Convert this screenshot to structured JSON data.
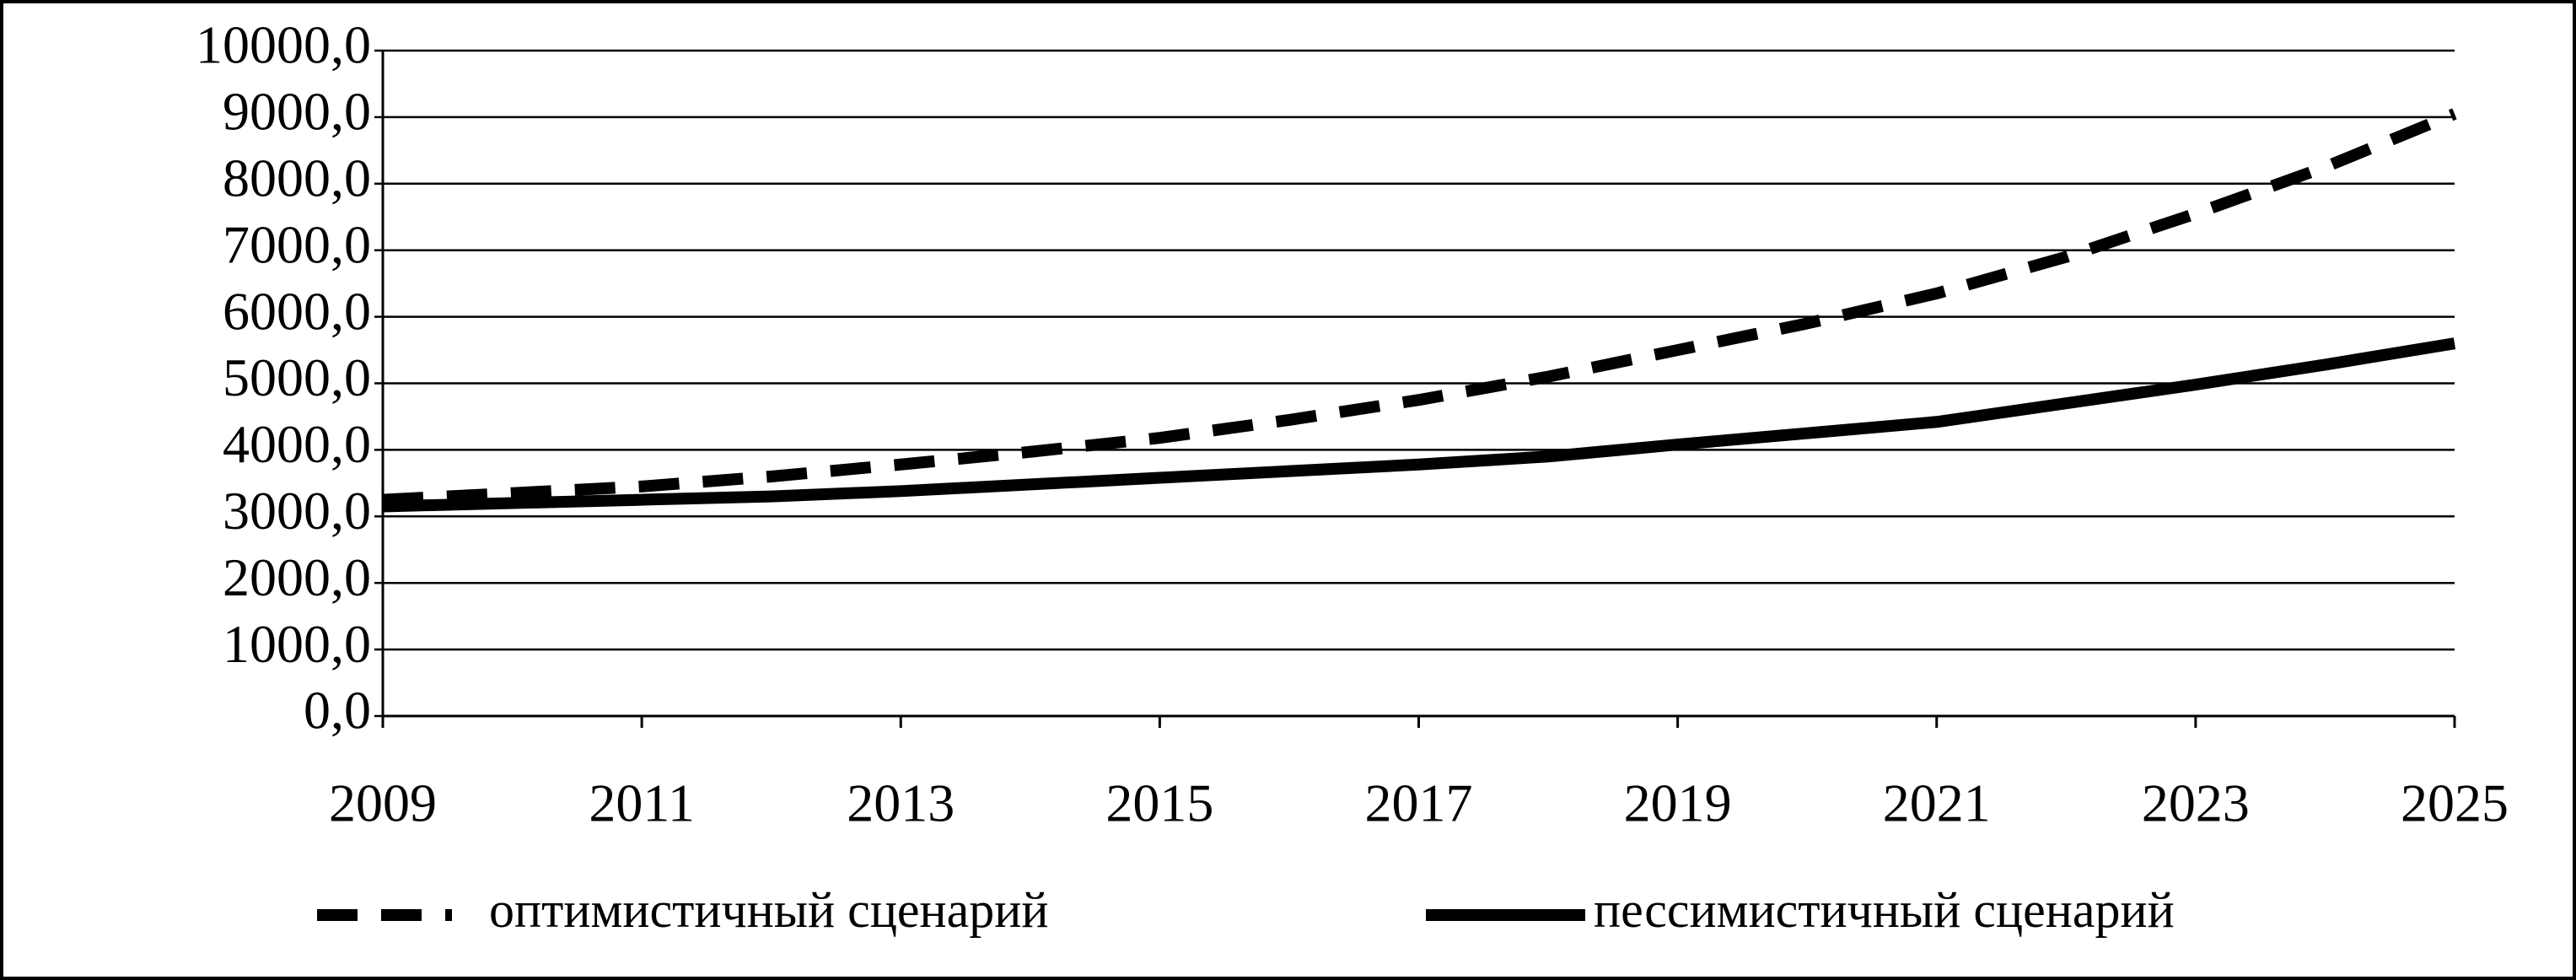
{
  "chart_data": {
    "type": "line",
    "x": [
      2009,
      2010,
      2011,
      2012,
      2013,
      2014,
      2015,
      2016,
      2017,
      2018,
      2019,
      2020,
      2021,
      2022,
      2023,
      2024,
      2025
    ],
    "series": [
      {
        "name": "оптимистичный сценарий",
        "color": "#000000",
        "dash": "dashed",
        "values": [
          3250,
          3350,
          3450,
          3600,
          3780,
          3970,
          4180,
          4450,
          4750,
          5100,
          5500,
          5900,
          6350,
          6900,
          7550,
          8250,
          9050
        ]
      },
      {
        "name": "пессимистичный сценарий",
        "color": "#000000",
        "dash": "solid",
        "values": [
          3150,
          3200,
          3250,
          3300,
          3380,
          3480,
          3580,
          3680,
          3780,
          3900,
          4080,
          4250,
          4420,
          4700,
          4980,
          5280,
          5600
        ]
      }
    ],
    "xlim": [
      2009,
      2025
    ],
    "xticks": [
      2009,
      2011,
      2013,
      2015,
      2017,
      2019,
      2021,
      2023,
      2025
    ],
    "ylim": [
      0,
      10000
    ],
    "yticks": [
      {
        "value": 0,
        "label": "0,0"
      },
      {
        "value": 1000,
        "label": "1000,0"
      },
      {
        "value": 2000,
        "label": "2000,0"
      },
      {
        "value": 3000,
        "label": "3000,0"
      },
      {
        "value": 4000,
        "label": "4000,0"
      },
      {
        "value": 5000,
        "label": "5000,0"
      },
      {
        "value": 6000,
        "label": "6000,0"
      },
      {
        "value": 7000,
        "label": "7000,0"
      },
      {
        "value": 8000,
        "label": "8000,0"
      },
      {
        "value": 9000,
        "label": "9000,0"
      },
      {
        "value": 10000,
        "label": "10000,0"
      }
    ],
    "grid": true,
    "legend": "bottom"
  }
}
